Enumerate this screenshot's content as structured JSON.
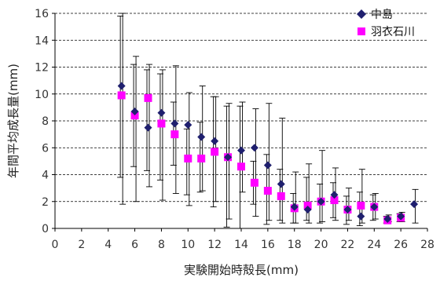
{
  "chart_data": {
    "type": "scatter",
    "xlabel": "実験開始時殻長(mm)",
    "ylabel": "年間平均成長量(mm)",
    "xlim": [
      0,
      28
    ],
    "ylim": [
      0,
      16
    ],
    "x_ticks": [
      "0",
      "2",
      "4",
      "6",
      "8",
      "10",
      "12",
      "14",
      "16",
      "18",
      "20",
      "22",
      "24",
      "26",
      "28"
    ],
    "y_ticks": [
      "0",
      "2",
      "4",
      "6",
      "8",
      "10",
      "12",
      "14",
      "16"
    ],
    "grid": "horizontal-dashed",
    "legend_position": "top-right",
    "series": [
      {
        "name": "中島",
        "marker": "diamond",
        "color": "#1f1f6e",
        "points": [
          {
            "x": 5,
            "y": 10.6,
            "lo": 1.8,
            "hi": 16.0
          },
          {
            "x": 6,
            "y": 8.7,
            "lo": 2.0,
            "hi": 12.8
          },
          {
            "x": 7,
            "y": 7.5,
            "lo": 3.1,
            "hi": 12.2
          },
          {
            "x": 8,
            "y": 8.6,
            "lo": 2.1,
            "hi": 11.8
          },
          {
            "x": 9,
            "y": 7.8,
            "lo": 2.6,
            "hi": 12.1
          },
          {
            "x": 10,
            "y": 7.7,
            "lo": 1.7,
            "hi": 10.1
          },
          {
            "x": 11,
            "y": 6.8,
            "lo": 2.8,
            "hi": 10.6
          },
          {
            "x": 12,
            "y": 6.5,
            "lo": 2.0,
            "hi": 9.8
          },
          {
            "x": 13,
            "y": 5.3,
            "lo": 0.7,
            "hi": 9.3
          },
          {
            "x": 14,
            "y": 5.8,
            "lo": 2.7,
            "hi": 9.4
          },
          {
            "x": 15,
            "y": 6.0,
            "lo": 0.9,
            "hi": 8.9
          },
          {
            "x": 16,
            "y": 4.7,
            "lo": 0.6,
            "hi": 9.3
          },
          {
            "x": 17,
            "y": 3.3,
            "lo": 0.4,
            "hi": 8.2
          },
          {
            "x": 18,
            "y": 1.6,
            "lo": 0.4,
            "hi": 4.2
          },
          {
            "x": 19,
            "y": 1.4,
            "lo": 0.4,
            "hi": 4.8
          },
          {
            "x": 20,
            "y": 2.0,
            "lo": 0.5,
            "hi": 5.8
          },
          {
            "x": 21,
            "y": 2.5,
            "lo": 0.6,
            "hi": 4.5
          },
          {
            "x": 22,
            "y": 1.4,
            "lo": 0.6,
            "hi": 3.0
          },
          {
            "x": 23,
            "y": 0.9,
            "lo": 0.4,
            "hi": 4.4
          },
          {
            "x": 24,
            "y": 1.6,
            "lo": 0.7,
            "hi": 2.6
          },
          {
            "x": 25,
            "y": 0.7,
            "lo": 0.5,
            "hi": 1.0
          },
          {
            "x": 26,
            "y": 0.9,
            "lo": 0.5,
            "hi": 1.2
          },
          {
            "x": 27,
            "y": 1.8,
            "lo": 0.4,
            "hi": 2.9
          }
        ]
      },
      {
        "name": "羽衣石川",
        "marker": "square",
        "color": "#ff00ff",
        "points": [
          {
            "x": 5,
            "y": 9.9,
            "lo": 3.8,
            "hi": 15.8
          },
          {
            "x": 6,
            "y": 8.4,
            "lo": 4.6,
            "hi": 12.2
          },
          {
            "x": 7,
            "y": 9.7,
            "lo": 4.3,
            "hi": 11.8
          },
          {
            "x": 8,
            "y": 7.8,
            "lo": 3.6,
            "hi": 11.5
          },
          {
            "x": 9,
            "y": 7.0,
            "lo": 4.7,
            "hi": 9.4
          },
          {
            "x": 10,
            "y": 5.2,
            "lo": 2.5,
            "hi": 7.4
          },
          {
            "x": 11,
            "y": 5.2,
            "lo": 2.7,
            "hi": 7.9
          },
          {
            "x": 12,
            "y": 5.7,
            "lo": 1.6,
            "hi": 9.8
          },
          {
            "x": 13,
            "y": 5.3,
            "lo": 0.1,
            "hi": 9.1
          },
          {
            "x": 14,
            "y": 4.6,
            "lo": 0.0,
            "hi": 9.1
          },
          {
            "x": 15,
            "y": 3.4,
            "lo": 1.8,
            "hi": 5.0
          },
          {
            "x": 16,
            "y": 2.8,
            "lo": 0.3,
            "hi": 5.5
          },
          {
            "x": 17,
            "y": 2.4,
            "lo": 0.6,
            "hi": 4.4
          },
          {
            "x": 18,
            "y": 1.5,
            "lo": 0.4,
            "hi": 2.6
          },
          {
            "x": 19,
            "y": 1.7,
            "lo": 0.6,
            "hi": 3.8
          },
          {
            "x": 20,
            "y": 2.0,
            "lo": 0.4,
            "hi": 3.3
          },
          {
            "x": 21,
            "y": 2.1,
            "lo": 0.8,
            "hi": 3.4
          },
          {
            "x": 22,
            "y": 1.4,
            "lo": 0.3,
            "hi": 2.4
          },
          {
            "x": 23,
            "y": 1.7,
            "lo": 0.2,
            "hi": 2.7
          },
          {
            "x": 24,
            "y": 1.6,
            "lo": 0.6,
            "hi": 2.5
          },
          {
            "x": 25,
            "y": 0.6,
            "lo": 0.4,
            "hi": 0.9
          },
          {
            "x": 26,
            "y": 0.8,
            "lo": 0.5,
            "hi": 1.1
          }
        ]
      }
    ]
  }
}
